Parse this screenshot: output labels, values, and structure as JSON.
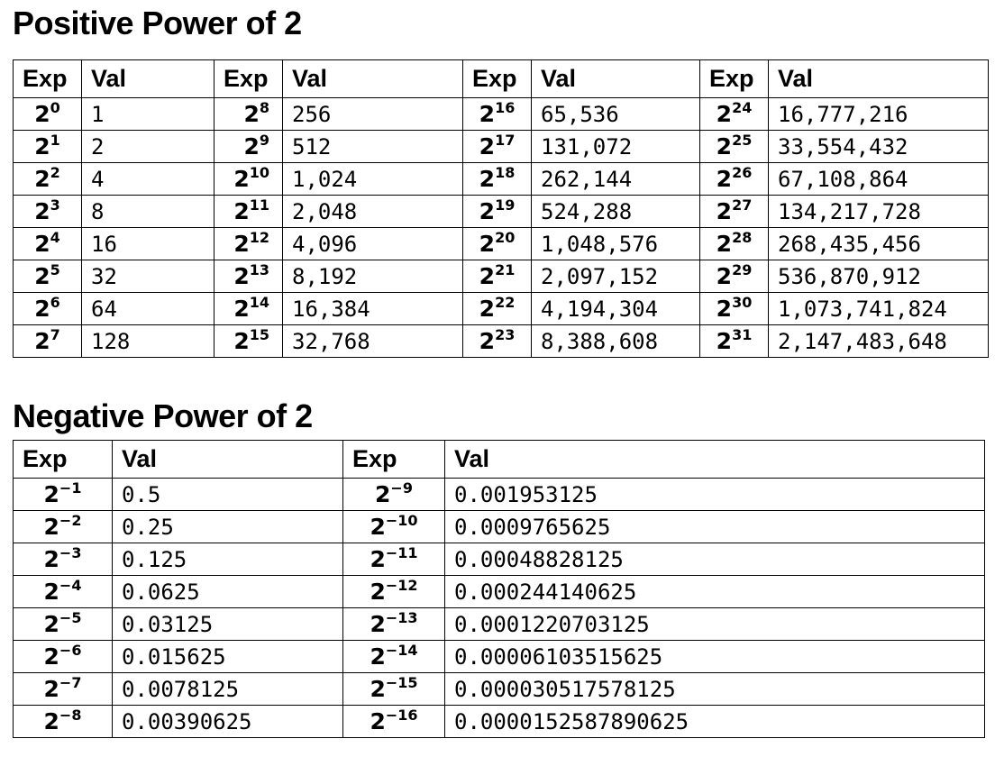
{
  "positive": {
    "title": "Positive Power of 2",
    "headers": [
      "Exp",
      "Val",
      "Exp",
      "Val",
      "Exp",
      "Val",
      "Exp",
      "Val"
    ],
    "rows": [
      [
        {
          "base": "2",
          "exp": "0"
        },
        "1",
        {
          "base": "2",
          "exp": "8"
        },
        "256",
        {
          "base": "2",
          "exp": "16"
        },
        "65,536",
        {
          "base": "2",
          "exp": "24"
        },
        "16,777,216"
      ],
      [
        {
          "base": "2",
          "exp": "1"
        },
        "2",
        {
          "base": "2",
          "exp": "9"
        },
        "512",
        {
          "base": "2",
          "exp": "17"
        },
        "131,072",
        {
          "base": "2",
          "exp": "25"
        },
        "33,554,432"
      ],
      [
        {
          "base": "2",
          "exp": "2"
        },
        "4",
        {
          "base": "2",
          "exp": "10"
        },
        "1,024",
        {
          "base": "2",
          "exp": "18"
        },
        "262,144",
        {
          "base": "2",
          "exp": "26"
        },
        "67,108,864"
      ],
      [
        {
          "base": "2",
          "exp": "3"
        },
        "8",
        {
          "base": "2",
          "exp": "11"
        },
        "2,048",
        {
          "base": "2",
          "exp": "19"
        },
        "524,288",
        {
          "base": "2",
          "exp": "27"
        },
        "134,217,728"
      ],
      [
        {
          "base": "2",
          "exp": "4"
        },
        "16",
        {
          "base": "2",
          "exp": "12"
        },
        "4,096",
        {
          "base": "2",
          "exp": "20"
        },
        "1,048,576",
        {
          "base": "2",
          "exp": "28"
        },
        "268,435,456"
      ],
      [
        {
          "base": "2",
          "exp": "5"
        },
        "32",
        {
          "base": "2",
          "exp": "13"
        },
        "8,192",
        {
          "base": "2",
          "exp": "21"
        },
        "2,097,152",
        {
          "base": "2",
          "exp": "29"
        },
        "536,870,912"
      ],
      [
        {
          "base": "2",
          "exp": "6"
        },
        "64",
        {
          "base": "2",
          "exp": "14"
        },
        "16,384",
        {
          "base": "2",
          "exp": "22"
        },
        "4,194,304",
        {
          "base": "2",
          "exp": "30"
        },
        "1,073,741,824"
      ],
      [
        {
          "base": "2",
          "exp": "7"
        },
        "128",
        {
          "base": "2",
          "exp": "15"
        },
        "32,768",
        {
          "base": "2",
          "exp": "23"
        },
        "8,388,608",
        {
          "base": "2",
          "exp": "31"
        },
        "2,147,483,648"
      ]
    ]
  },
  "negative": {
    "title": "Negative Power of 2",
    "headers": [
      "Exp",
      "Val",
      "Exp",
      "Val"
    ],
    "rows": [
      [
        {
          "base": "2",
          "exp": "−1"
        },
        "0.5",
        {
          "base": "2",
          "exp": "−9"
        },
        "0.001953125"
      ],
      [
        {
          "base": "2",
          "exp": "−2"
        },
        "0.25",
        {
          "base": "2",
          "exp": "−10"
        },
        "0.0009765625"
      ],
      [
        {
          "base": "2",
          "exp": "−3"
        },
        "0.125",
        {
          "base": "2",
          "exp": "−11"
        },
        "0.00048828125"
      ],
      [
        {
          "base": "2",
          "exp": "−4"
        },
        "0.0625",
        {
          "base": "2",
          "exp": "−12"
        },
        "0.000244140625"
      ],
      [
        {
          "base": "2",
          "exp": "−5"
        },
        "0.03125",
        {
          "base": "2",
          "exp": "−13"
        },
        "0.0001220703125"
      ],
      [
        {
          "base": "2",
          "exp": "−6"
        },
        "0.015625",
        {
          "base": "2",
          "exp": "−14"
        },
        "0.00006103515625"
      ],
      [
        {
          "base": "2",
          "exp": "−7"
        },
        "0.0078125",
        {
          "base": "2",
          "exp": "−15"
        },
        "0.000030517578125"
      ],
      [
        {
          "base": "2",
          "exp": "−8"
        },
        "0.00390625",
        {
          "base": "2",
          "exp": "−16"
        },
        "0.0000152587890625"
      ]
    ]
  }
}
